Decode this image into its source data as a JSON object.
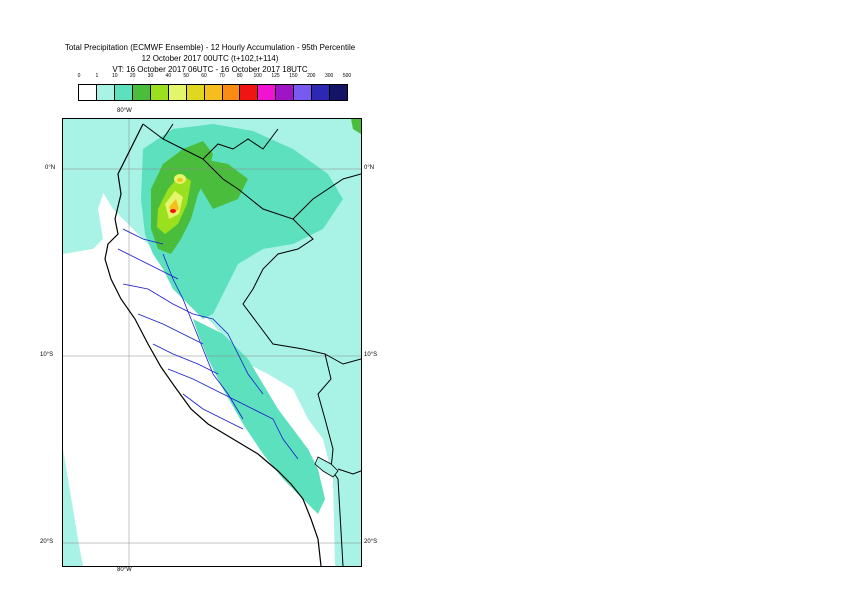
{
  "title": {
    "line1": "Total Precipitation (ECMWF Ensemble) - 12 Hourly Accumulation - 95th Percentile",
    "line2": "12 October 2017 00UTC (t+102,t+114)",
    "line3": "VT: 16 October 2017 06UTC - 16 October 2017 18UTC"
  },
  "legend": {
    "labels": [
      "0",
      "1",
      "10",
      "20",
      "30",
      "40",
      "50",
      "60",
      "70",
      "80",
      "100",
      "125",
      "150",
      "200",
      "300",
      "500"
    ],
    "colors": [
      "#ffffff",
      "#a8f2e6",
      "#5de0be",
      "#4bbd3c",
      "#9ae01e",
      "#e3f56a",
      "#e0d81e",
      "#f5bd1e",
      "#fa8c14",
      "#f01414",
      "#f014d2",
      "#a014c8",
      "#785af0",
      "#2d28b4",
      "#141464"
    ]
  },
  "map": {
    "lon_labels": {
      "top": "80°W",
      "bottom": "80°W"
    },
    "lat_labels": [
      {
        "left": "0°N",
        "right": "0°N"
      },
      {
        "left": "10°S",
        "right": "10°S"
      },
      {
        "left": "20°S",
        "right": "20°S"
      }
    ]
  }
}
